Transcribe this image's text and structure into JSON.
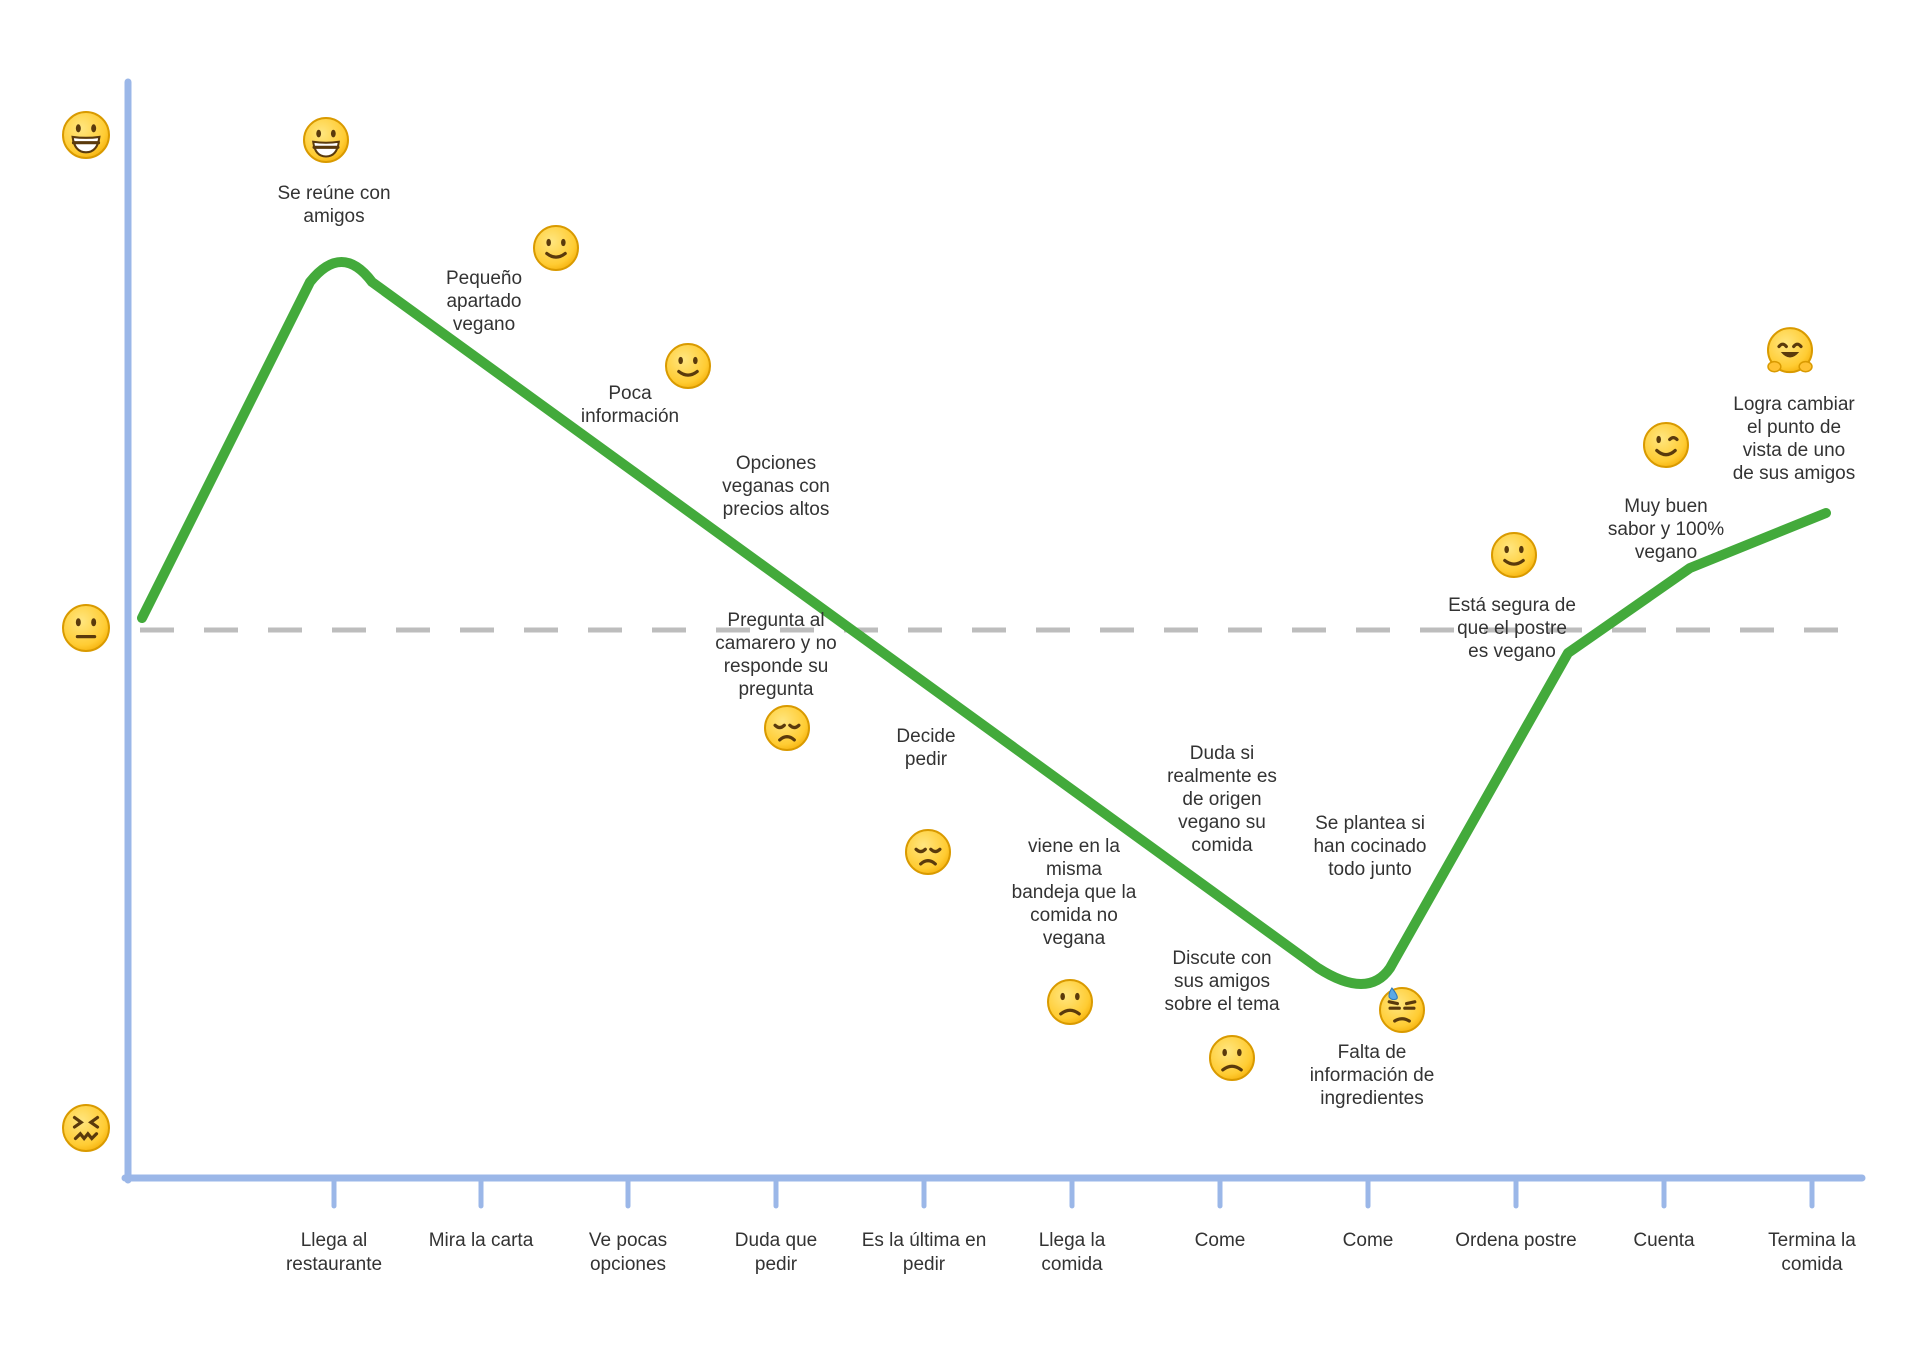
{
  "scale": [
    {
      "name": "happy",
      "icon": "grinning-face"
    },
    {
      "name": "neutral",
      "icon": "neutral-face"
    },
    {
      "name": "bad",
      "icon": "confounded-face"
    }
  ],
  "stages": [
    {
      "label": [
        "Llega al",
        "restaurante"
      ]
    },
    {
      "label": [
        "Mira la carta"
      ]
    },
    {
      "label": [
        "Ve pocas",
        "opciones"
      ]
    },
    {
      "label": [
        "Duda que",
        "pedir"
      ]
    },
    {
      "label": [
        "Es la última en",
        "pedir"
      ]
    },
    {
      "label": [
        "Llega la",
        "comida"
      ]
    },
    {
      "label": [
        "Come"
      ]
    },
    {
      "label": [
        "Come"
      ]
    },
    {
      "label": [
        "Ordena postre"
      ]
    },
    {
      "label": [
        "Cuenta"
      ]
    },
    {
      "label": [
        "Termina la",
        "comida"
      ]
    }
  ],
  "moments": [
    {
      "icon": "grinning-face",
      "text": [
        "Se reúne con",
        "amigos"
      ]
    },
    {
      "icon": "slightly-smiling-face",
      "text": [
        "Pequeño",
        "apartado",
        "vegano"
      ]
    },
    {
      "icon": "slightly-smiling-face",
      "text": [
        "Poca",
        "información"
      ]
    },
    {
      "icon": "",
      "text": [
        "Opciones",
        "veganas con",
        "precios altos"
      ]
    },
    {
      "icon": "disappointed-face",
      "text": [
        "Pregunta al",
        "camarero y no",
        "responde su",
        "pregunta"
      ]
    },
    {
      "icon": "disappointed-face",
      "text": [
        "Decide",
        "pedir"
      ]
    },
    {
      "icon": "frowning-face",
      "text": [
        "viene en la",
        "misma",
        "bandeja que la",
        "comida no",
        "vegana"
      ]
    },
    {
      "icon": "",
      "text": [
        "Duda si",
        "realmente es",
        "de origen",
        "vegano su",
        "comida"
      ]
    },
    {
      "icon": "frowning-face",
      "text": [
        "Discute con",
        "sus amigos",
        "sobre el tema"
      ]
    },
    {
      "icon": "",
      "text": [
        "Se plantea si",
        "han cocinado",
        "todo junto"
      ]
    },
    {
      "icon": "downcast-face-with-sweat",
      "text": [
        "Falta de",
        "información de",
        "ingredientes"
      ]
    },
    {
      "icon": "slightly-smiling-face",
      "text": [
        "Está segura de",
        "que el postre",
        "es vegano"
      ]
    },
    {
      "icon": "winking-face",
      "text": [
        "Muy buen",
        "sabor y 100%",
        "vegano"
      ]
    },
    {
      "icon": "hugging-face",
      "text": [
        "Logra cambiar",
        "el punto de",
        "vista de uno",
        "de sus amigos"
      ]
    }
  ],
  "colors": {
    "axis": "#9bb7e8",
    "curve": "#43aa3b",
    "baseline": "#bdbdbd",
    "text": "#333333",
    "emoji": "#ffcc33"
  }
}
